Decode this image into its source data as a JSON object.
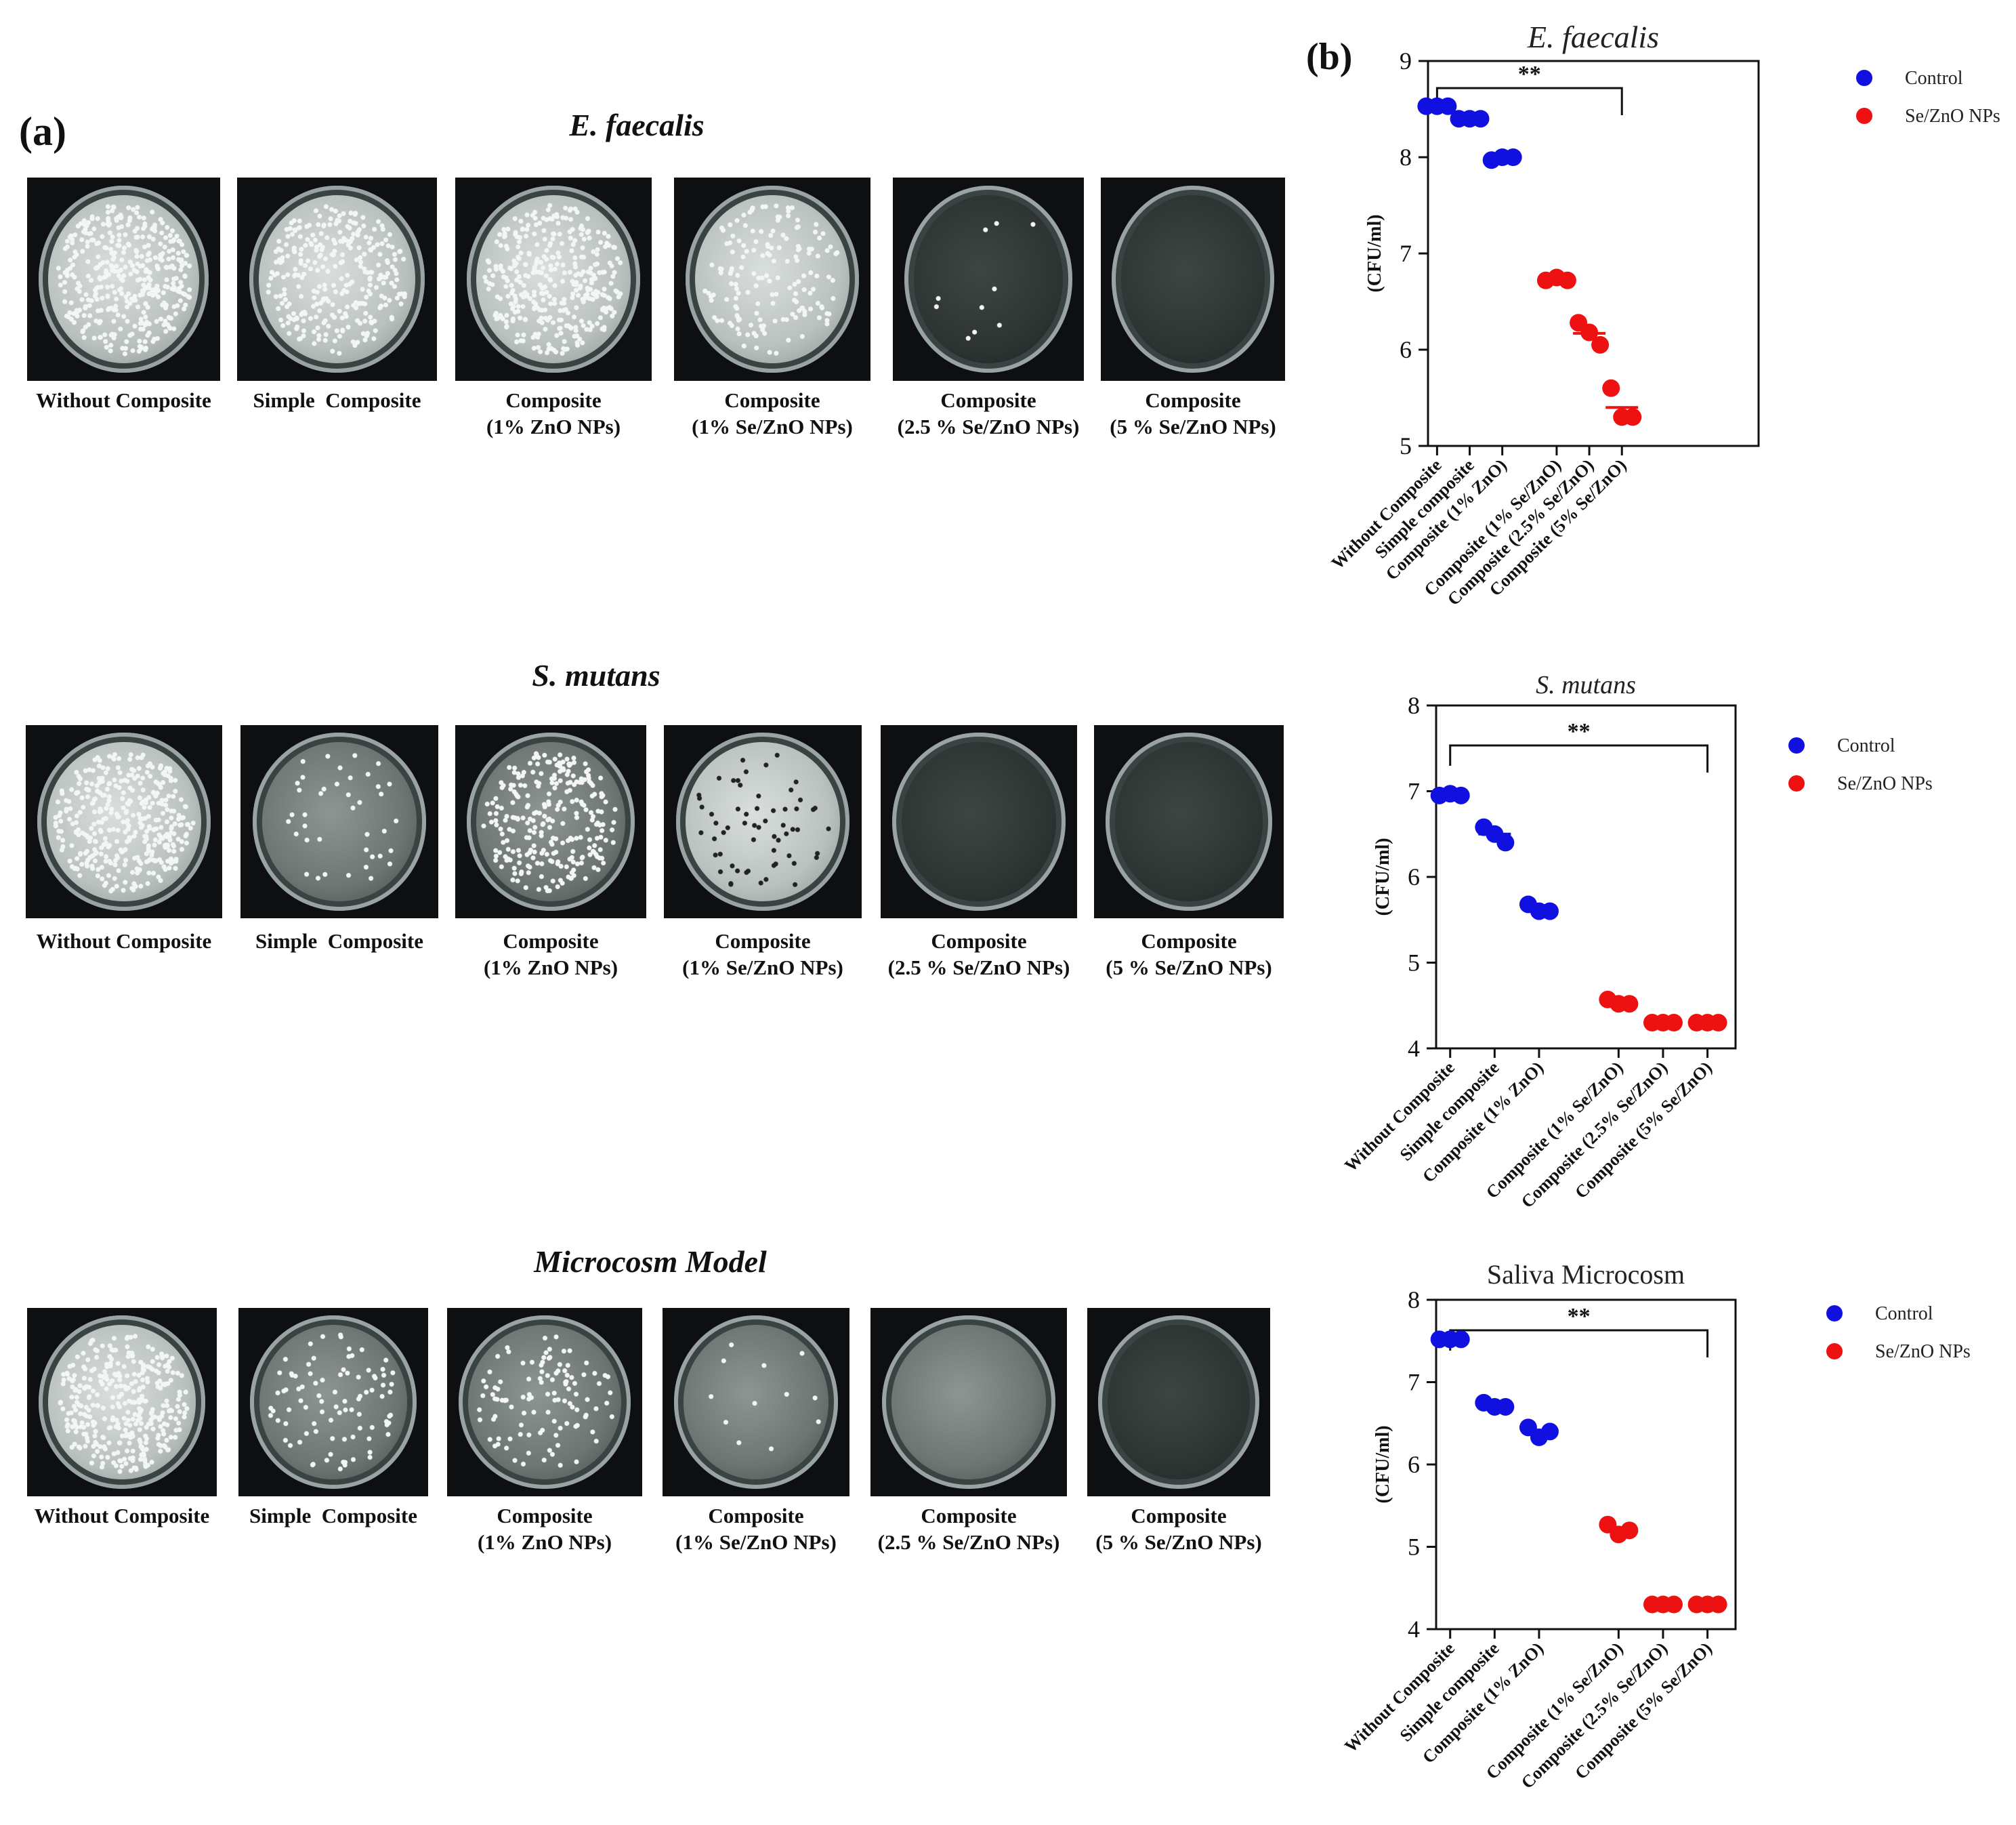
{
  "panel_a_label": "(a)",
  "panel_b_label": "(b)",
  "plate_sections": [
    {
      "title": "E. faecalis",
      "captions": [
        "Without Composite",
        "Simple  Composite",
        "Composite\n(1% ZnO NPs)",
        "Composite\n(1% Se/ZnO NPs)",
        "Composite\n(2.5 % Se/ZnO NPs)",
        "Composite\n(5 % Se/ZnO NPs)"
      ]
    },
    {
      "title": "S. mutans",
      "captions": [
        "Without Composite",
        "Simple  Composite",
        "Composite\n(1% ZnO NPs)",
        "Composite\n(1% Se/ZnO NPs)",
        "Composite\n(2.5 % Se/ZnO NPs)",
        "Composite\n(5 % Se/ZnO NPs)"
      ]
    },
    {
      "title": "Microcosm Model",
      "captions": [
        "Without Composite",
        "Simple  Composite",
        "Composite\n(1% ZnO NPs)",
        "Composite\n(1% Se/ZnO NPs)",
        "Composite\n(2.5 % Se/ZnO NPs)",
        "Composite\n(5 % Se/ZnO NPs)"
      ]
    }
  ],
  "colors": {
    "control": "#1010e0",
    "sezno": "#ee1111",
    "axis": "#111111"
  },
  "chart_data": [
    {
      "type": "scatter",
      "title": "E. faecalis",
      "ylabel": "(CFU/ml)",
      "ylim": [
        5,
        9
      ],
      "yticks": [
        5,
        6,
        7,
        8,
        9
      ],
      "categories": [
        "Without Composite",
        "Simple composite",
        "Composite (1% ZnO)",
        "Composite (1% Se/ZnO)",
        "Composite (2.5% Se/ZnO)",
        "Composite (5% Se/ZnO)"
      ],
      "significance": "**",
      "legend": [
        "Control",
        "Se/ZnO NPs"
      ],
      "series": [
        {
          "name": "Control",
          "points": [
            [
              0,
              8.53
            ],
            [
              0,
              8.53
            ],
            [
              0,
              8.53
            ],
            [
              1,
              8.4
            ],
            [
              1,
              8.4
            ],
            [
              1,
              8.4
            ],
            [
              2,
              7.97
            ],
            [
              2,
              8.0
            ],
            [
              2,
              8.0
            ]
          ]
        },
        {
          "name": "Se/ZnO NPs",
          "points": [
            [
              3,
              6.72
            ],
            [
              3,
              6.75
            ],
            [
              3,
              6.72
            ],
            [
              4,
              6.28
            ],
            [
              4,
              6.18
            ],
            [
              4,
              6.05
            ],
            [
              5,
              5.6
            ],
            [
              5,
              5.3
            ],
            [
              5,
              5.3
            ]
          ]
        }
      ],
      "means": [
        8.53,
        8.4,
        7.99,
        6.73,
        6.17,
        5.4
      ]
    },
    {
      "type": "scatter",
      "title": "S. mutans",
      "ylabel": "(CFU/ml)",
      "ylim": [
        4,
        8
      ],
      "yticks": [
        4,
        5,
        6,
        7,
        8
      ],
      "categories": [
        "Without Composite",
        "Simple composite",
        "Composite (1% ZnO)",
        "Composite (1% Se/ZnO)",
        "Composite (2.5% Se/ZnO)",
        "Composite (5% Se/ZnO)"
      ],
      "significance": "**",
      "legend": [
        "Control",
        "Se/ZnO NPs"
      ],
      "series": [
        {
          "name": "Control",
          "points": [
            [
              0,
              6.95
            ],
            [
              0,
              6.97
            ],
            [
              0,
              6.95
            ],
            [
              1,
              6.58
            ],
            [
              1,
              6.5
            ],
            [
              1,
              6.4
            ],
            [
              2,
              5.68
            ],
            [
              2,
              5.6
            ],
            [
              2,
              5.6
            ]
          ]
        },
        {
          "name": "Se/ZnO NPs",
          "points": [
            [
              3,
              4.57
            ],
            [
              3,
              4.52
            ],
            [
              3,
              4.52
            ],
            [
              4,
              4.3
            ],
            [
              4,
              4.3
            ],
            [
              4,
              4.3
            ],
            [
              5,
              4.3
            ],
            [
              5,
              4.3
            ],
            [
              5,
              4.3
            ]
          ]
        }
      ],
      "means": [
        6.96,
        6.5,
        5.63,
        4.54,
        4.3,
        4.3
      ]
    },
    {
      "type": "scatter",
      "title": "Saliva Microcosm",
      "ylabel": "(CFU/ml)",
      "ylim": [
        4,
        8
      ],
      "yticks": [
        4,
        5,
        6,
        7,
        8
      ],
      "categories": [
        "Without Composite",
        "Simple composite",
        "Composite (1% ZnO)",
        "Composite (1% Se/ZnO)",
        "Composite (2.5% Se/ZnO)",
        "Composite (5% Se/ZnO)"
      ],
      "significance": "**",
      "legend": [
        "Control",
        "Se/ZnO NPs"
      ],
      "series": [
        {
          "name": "Control",
          "points": [
            [
              0,
              7.52
            ],
            [
              0,
              7.52
            ],
            [
              0,
              7.52
            ],
            [
              1,
              6.75
            ],
            [
              1,
              6.7
            ],
            [
              1,
              6.7
            ],
            [
              2,
              6.45
            ],
            [
              2,
              6.33
            ],
            [
              2,
              6.4
            ]
          ]
        },
        {
          "name": "Se/ZnO NPs",
          "points": [
            [
              3,
              5.27
            ],
            [
              3,
              5.15
            ],
            [
              3,
              5.2
            ],
            [
              4,
              4.3
            ],
            [
              4,
              4.3
            ],
            [
              4,
              4.3
            ],
            [
              5,
              4.3
            ],
            [
              5,
              4.3
            ],
            [
              5,
              4.3
            ]
          ]
        }
      ],
      "means": [
        7.52,
        6.72,
        6.39,
        5.2,
        4.3,
        4.3
      ]
    }
  ]
}
